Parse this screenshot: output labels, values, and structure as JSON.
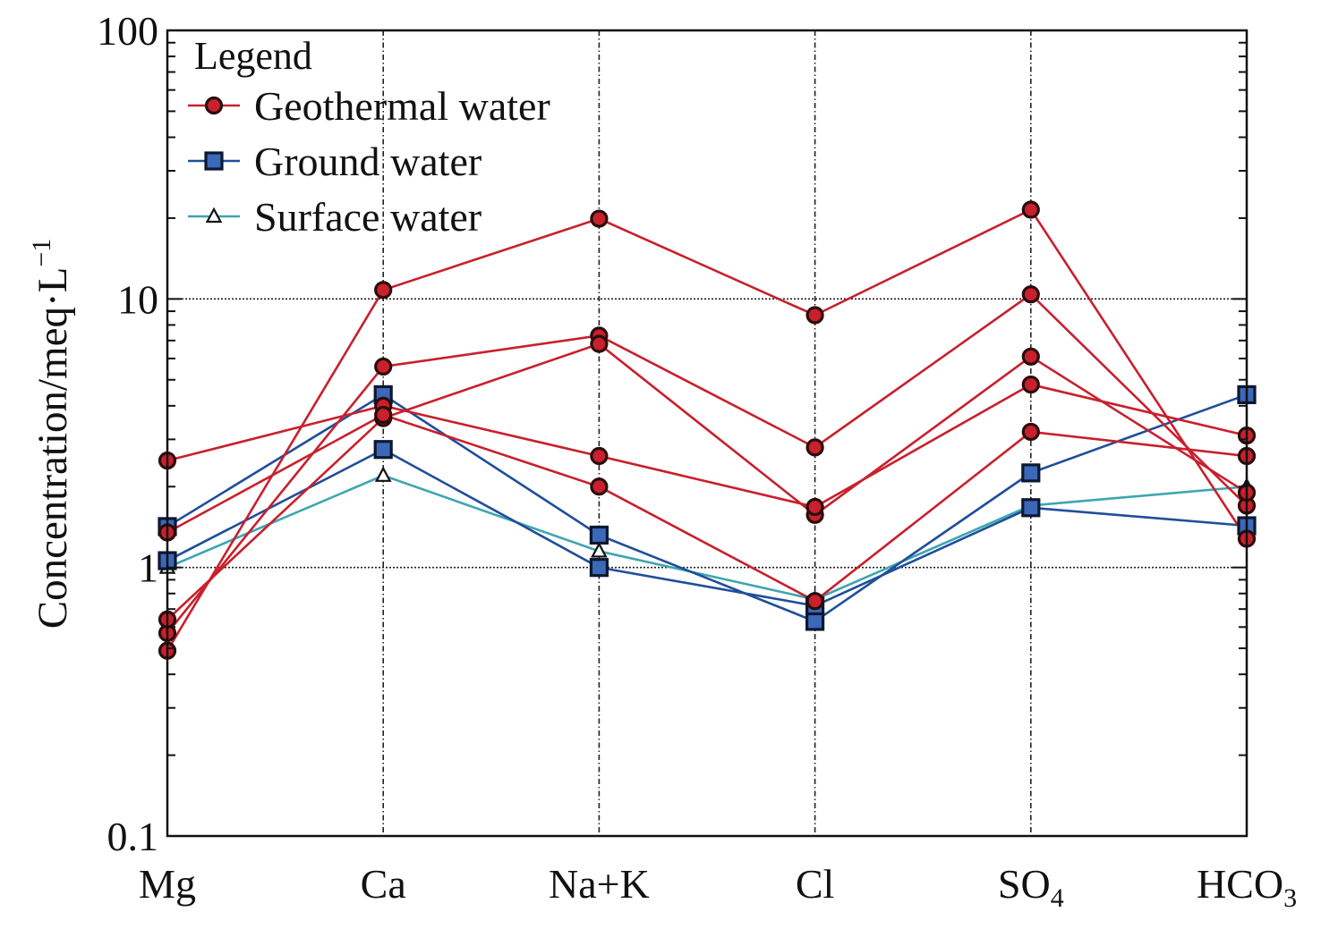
{
  "chart_data": {
    "type": "line",
    "title": "",
    "ylabel": "Concentration/meq·L",
    "ylabel_superscript": "−1",
    "xlabel": "",
    "y_scale": "log",
    "ylim": [
      0.1,
      100
    ],
    "y_ticks": [
      {
        "value": 0.1,
        "label": "0.1"
      },
      {
        "value": 1,
        "label": "1"
      },
      {
        "value": 10,
        "label": "10"
      },
      {
        "value": 100,
        "label": "100"
      }
    ],
    "categories": [
      {
        "label": "Mg",
        "sub": ""
      },
      {
        "label": "Ca",
        "sub": ""
      },
      {
        "label": "Na+K",
        "sub": ""
      },
      {
        "label": "Cl",
        "sub": ""
      },
      {
        "label": "SO",
        "sub": "4"
      },
      {
        "label": "HCO",
        "sub": "3"
      }
    ],
    "grid": "vertical at categories, horizontal at decades (dotted)",
    "legend": {
      "title": "Legend",
      "placement": "top-left",
      "entries": [
        {
          "label": "Geothermal water",
          "group": "geothermal"
        },
        {
          "label": "Ground water",
          "group": "ground"
        },
        {
          "label": "Surface water",
          "group": "surface"
        }
      ]
    },
    "groups": {
      "geothermal": {
        "line_color": "#c8202c",
        "marker": "circle",
        "marker_fill": "#c8202c"
      },
      "ground": {
        "line_color": "#1f4e9a",
        "marker": "square",
        "marker_fill": "#3b68b8"
      },
      "surface": {
        "line_color": "#3ea6b0",
        "marker": "triangle",
        "marker_fill": "#ffffff"
      }
    },
    "series": [
      {
        "group": "geothermal",
        "values": [
          0.49,
          10.8,
          19.9,
          8.7,
          21.5,
          1.28
        ]
      },
      {
        "group": "geothermal",
        "values": [
          0.57,
          5.6,
          7.3,
          2.8,
          10.4,
          1.7
        ]
      },
      {
        "group": "geothermal",
        "values": [
          0.64,
          3.6,
          6.8,
          1.57,
          6.1,
          1.9
        ]
      },
      {
        "group": "geothermal",
        "values": [
          2.5,
          4.0,
          2.6,
          1.68,
          4.8,
          3.1
        ]
      },
      {
        "group": "geothermal",
        "values": [
          1.35,
          3.7,
          2.0,
          0.75,
          3.2,
          2.6
        ]
      },
      {
        "group": "ground",
        "values": [
          1.42,
          4.4,
          1.32,
          0.63,
          2.25,
          4.4
        ]
      },
      {
        "group": "ground",
        "values": [
          1.06,
          2.75,
          1.0,
          0.72,
          1.67,
          1.43
        ]
      },
      {
        "group": "surface",
        "values": [
          1.0,
          2.2,
          1.15,
          0.76,
          1.7,
          2.0
        ]
      }
    ]
  }
}
